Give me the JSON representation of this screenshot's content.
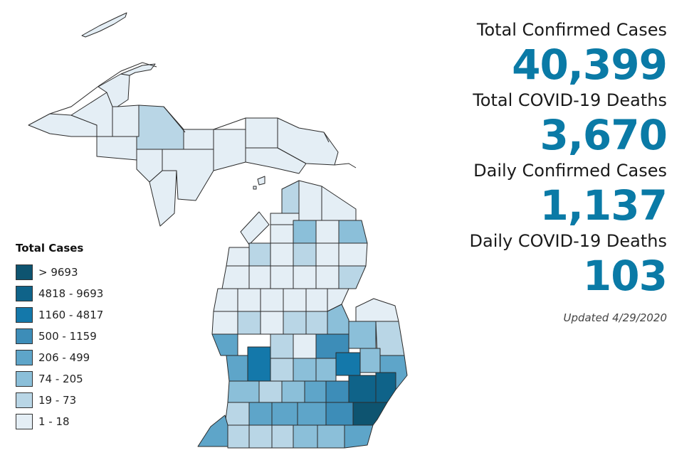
{
  "legend": {
    "title": "Total Cases",
    "items": [
      {
        "label": "> 9693",
        "color": "#0e5470"
      },
      {
        "label": "4818 - 9693",
        "color": "#0f6389"
      },
      {
        "label": "1160 - 4817",
        "color": "#1478aa"
      },
      {
        "label": "500 - 1159",
        "color": "#3d8db8"
      },
      {
        "label": "206 - 499",
        "color": "#5ea5c9"
      },
      {
        "label": "74 - 205",
        "color": "#8bbfd9"
      },
      {
        "label": "19 - 73",
        "color": "#b9d6e6"
      },
      {
        "label": "1 - 18",
        "color": "#e4eef5"
      }
    ]
  },
  "stats": {
    "confirmed_label": "Total Confirmed Cases",
    "confirmed_value": "40,399",
    "deaths_label": "Total COVID-19 Deaths",
    "deaths_value": "3,670",
    "daily_cases_label": "Daily Confirmed Cases",
    "daily_cases_value": "1,137",
    "daily_deaths_label": "Daily COVID-19 Deaths",
    "daily_deaths_value": "103",
    "updated": "Updated 4/29/2020"
  },
  "colors": {
    "accent": "#0a7aa6"
  }
}
